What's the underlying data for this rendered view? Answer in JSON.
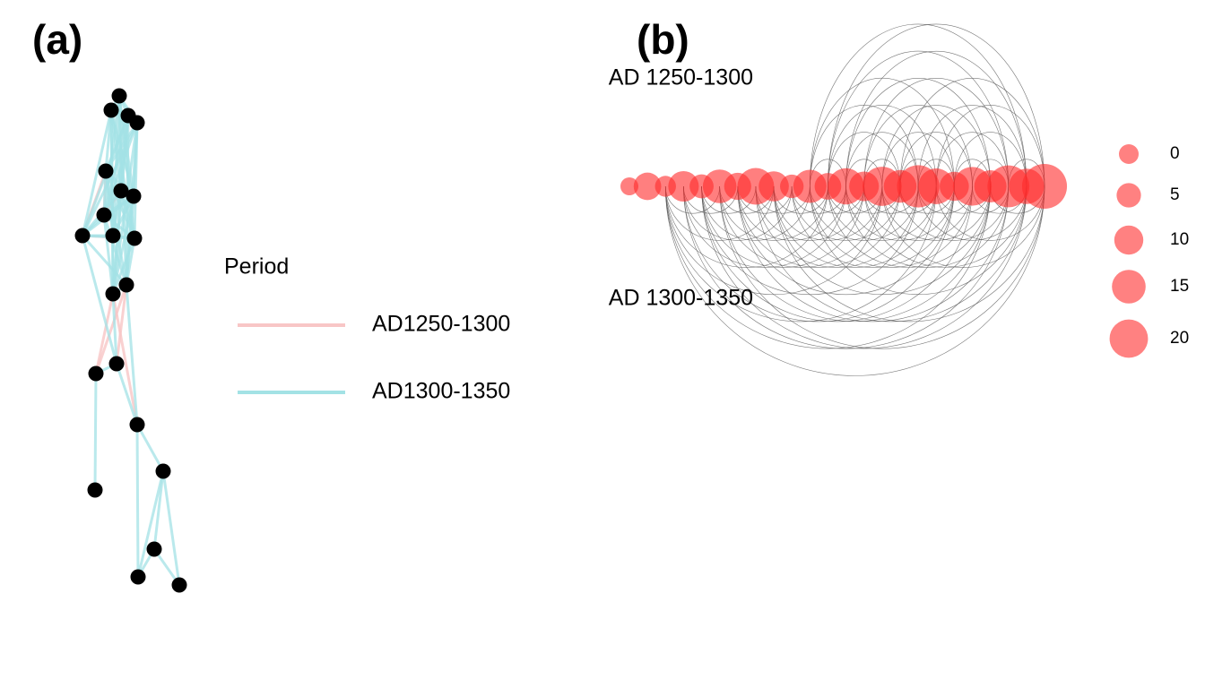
{
  "panels": [
    {
      "label": "(a)",
      "legend": {
        "title": "Period",
        "items": [
          {
            "label": "AD1250-1300",
            "color": "#f8c6c6"
          },
          {
            "label": "AD1300-1350",
            "color": "#a3e2e5"
          }
        ]
      }
    },
    {
      "label": "(b)",
      "row_labels": [
        "AD 1250-1300",
        "AD 1300-1350"
      ],
      "size_legend": {
        "values": [
          0,
          5,
          10,
          15,
          20
        ],
        "color": "#ff6b6b"
      }
    }
  ]
}
